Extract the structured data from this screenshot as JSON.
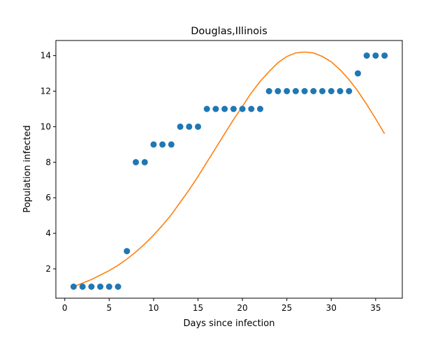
{
  "chart_data": {
    "type": "scatter",
    "title": "Douglas,Illinois",
    "xlabel": "Days since infection",
    "ylabel": "Population infected",
    "xlim": [
      -1,
      38
    ],
    "ylim": [
      0.35,
      14.85
    ],
    "x_ticks": [
      0,
      5,
      10,
      15,
      20,
      25,
      30,
      35
    ],
    "y_ticks": [
      2,
      4,
      6,
      8,
      10,
      12,
      14
    ],
    "grid": false,
    "legend": "none",
    "series": [
      {
        "kind": "scatter",
        "color": "#1f77b4",
        "x": [
          1,
          2,
          3,
          4,
          5,
          6,
          7,
          8,
          9,
          10,
          11,
          12,
          13,
          14,
          15,
          16,
          17,
          18,
          19,
          20,
          21,
          22,
          23,
          24,
          25,
          26,
          27,
          28,
          29,
          30,
          31,
          32,
          33,
          34,
          35,
          36
        ],
        "y": [
          1,
          1,
          1,
          1,
          1,
          1,
          3,
          8,
          8,
          9,
          9,
          9,
          10,
          10,
          10,
          11,
          11,
          11,
          11,
          11,
          11,
          11,
          12,
          12,
          12,
          12,
          12,
          12,
          12,
          12,
          12,
          12,
          13,
          14,
          14,
          14
        ]
      },
      {
        "kind": "line",
        "color": "#ff7f0e",
        "x": [
          1,
          2,
          3,
          4,
          5,
          6,
          7,
          8,
          9,
          10,
          11,
          12,
          13,
          14,
          15,
          16,
          17,
          18,
          19,
          20,
          21,
          22,
          23,
          24,
          25,
          26,
          27,
          28,
          29,
          30,
          31,
          32,
          33,
          34,
          35,
          36
        ],
        "y": [
          1.0,
          1.2,
          1.4,
          1.65,
          1.9,
          2.2,
          2.55,
          2.95,
          3.4,
          3.9,
          4.45,
          5.05,
          5.75,
          6.45,
          7.2,
          8.0,
          8.8,
          9.6,
          10.4,
          11.15,
          11.9,
          12.55,
          13.1,
          13.6,
          13.95,
          14.15,
          14.2,
          14.15,
          13.95,
          13.65,
          13.2,
          12.65,
          12.0,
          11.25,
          10.45,
          9.6
        ]
      }
    ]
  }
}
